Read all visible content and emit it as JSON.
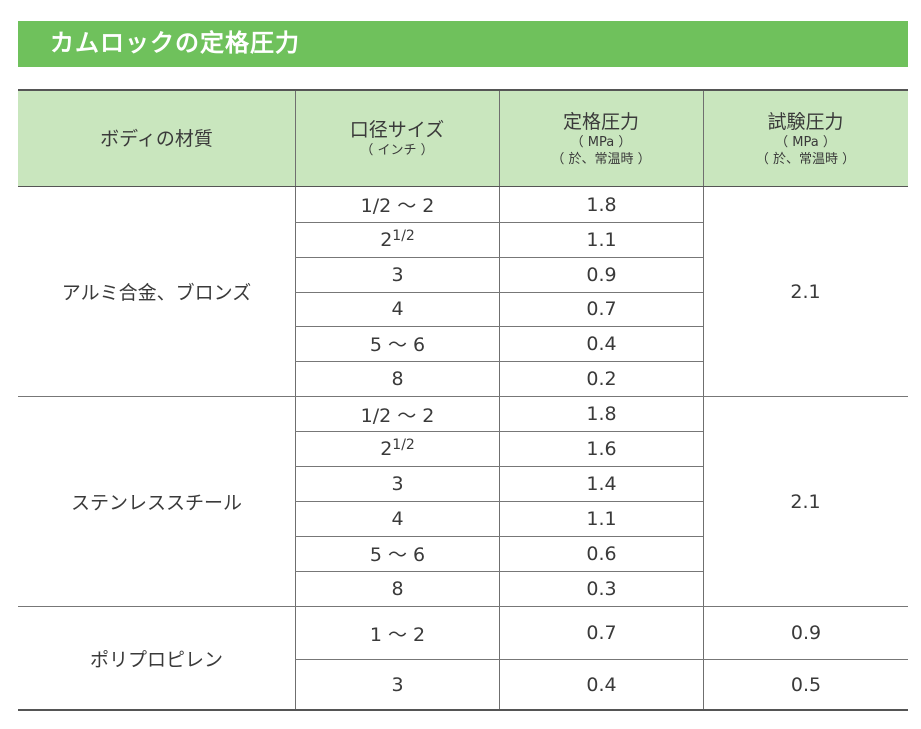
{
  "title": "カムロックの定格圧力",
  "headers": {
    "material": "ボディの材質",
    "size": "口径サイズ",
    "size_unit": "（ インチ ）",
    "rated": "定格圧力",
    "rated_unit": "（ MPa ）",
    "rated_cond": "（ 於、常温時 ）",
    "test": "試験圧力",
    "test_unit": "（ MPa ）",
    "test_cond": "（ 於、常温時 ）"
  },
  "groups": [
    {
      "material": "アルミ合金、ブロンズ",
      "test_pressure": "2.1",
      "rows": [
        {
          "size": "1/2 ～ 2",
          "rated": "1.8"
        },
        {
          "size_whole": "2",
          "size_frac": "1/2",
          "rated": "1.1"
        },
        {
          "size": "3",
          "rated": "0.9"
        },
        {
          "size": "4",
          "rated": "0.7"
        },
        {
          "size": "5 ～ 6",
          "rated": "0.4"
        },
        {
          "size": "8",
          "rated": "0.2"
        }
      ]
    },
    {
      "material": "ステンレススチール",
      "test_pressure": "2.1",
      "rows": [
        {
          "size": "1/2 ～ 2",
          "rated": "1.8"
        },
        {
          "size_whole": "2",
          "size_frac": "1/2",
          "rated": "1.6"
        },
        {
          "size": "3",
          "rated": "1.4"
        },
        {
          "size": "4",
          "rated": "1.1"
        },
        {
          "size": "5 ～ 6",
          "rated": "0.6"
        },
        {
          "size": "8",
          "rated": "0.3"
        }
      ]
    },
    {
      "material": "ポリプロピレン",
      "rows": [
        {
          "size": "1 ～ 2",
          "rated": "0.7",
          "test": "0.9"
        },
        {
          "size": "3",
          "rated": "0.4",
          "test": "0.5"
        }
      ]
    }
  ]
}
